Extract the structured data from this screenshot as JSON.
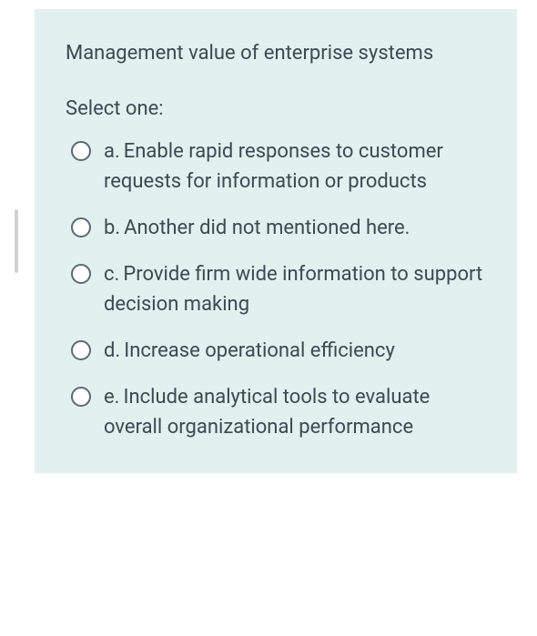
{
  "card": {
    "background_color": "#e3f0f0",
    "text_color": "#3b4a52",
    "font_size": 22
  },
  "question": {
    "text": "Management value of enterprise systems"
  },
  "prompt": "Select one:",
  "options": [
    {
      "letter": "a.",
      "text": "Enable rapid responses to customer requests for information or products"
    },
    {
      "letter": "b.",
      "text": "Another did not mentioned here."
    },
    {
      "letter": "c.",
      "text": "Provide firm wide information to support decision making"
    },
    {
      "letter": "d.",
      "text": "Increase operational efficiency"
    },
    {
      "letter": "e.",
      "text": "Include analytical tools to evaluate overall organizational performance"
    }
  ]
}
